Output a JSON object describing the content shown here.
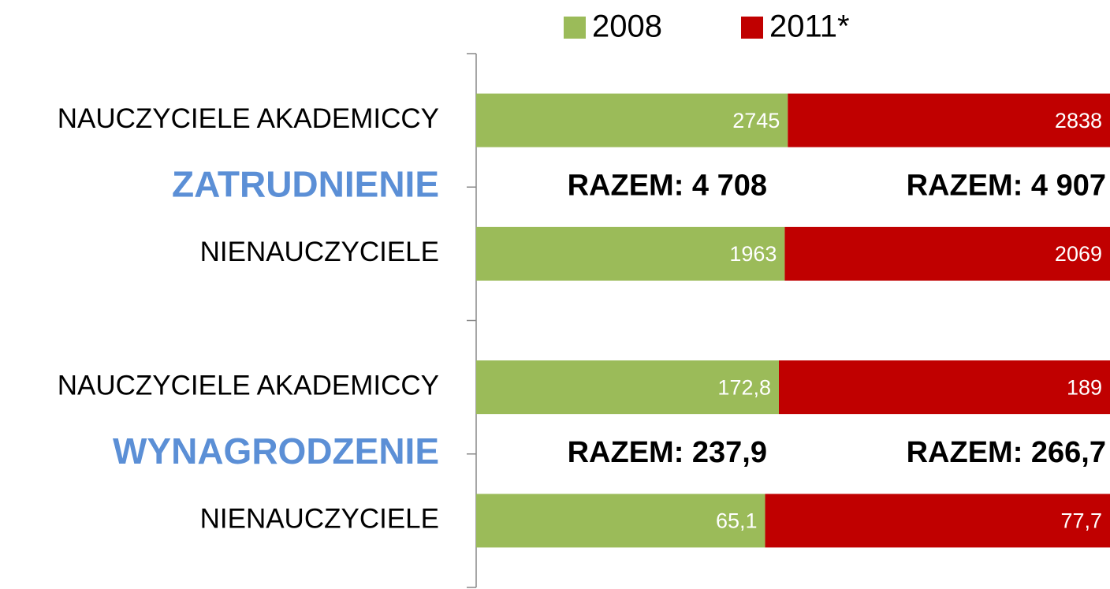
{
  "chart_data": {
    "type": "bar",
    "orientation": "horizontal",
    "stacked": "percent",
    "categories": [
      "NAUCZYCIELE AKADEMICCY",
      "NIENAUCZYCIELE",
      "NAUCZYCIELE AKADEMICCY",
      "NIENAUCZYCIELE"
    ],
    "groups": [
      "ZATRUDNIENIE",
      "WYNAGRODZENIE"
    ],
    "annotations": [
      [
        "RAZEM: 4 708",
        "RAZEM: 4 907"
      ],
      [
        "RAZEM: 237,9",
        "RAZEM: 266,7"
      ]
    ],
    "series": [
      {
        "name": "2008",
        "color": "#9bbb59",
        "values": [
          2745,
          1963,
          172.8,
          65.1
        ],
        "value_labels": [
          "2745",
          "1963",
          "172,8",
          "65,1"
        ]
      },
      {
        "name": "2011*",
        "color": "#c00000",
        "values": [
          2838,
          2069,
          189,
          77.7
        ],
        "value_labels": [
          "2838",
          "2069",
          "189",
          "77,7"
        ]
      }
    ],
    "legend": "top"
  }
}
